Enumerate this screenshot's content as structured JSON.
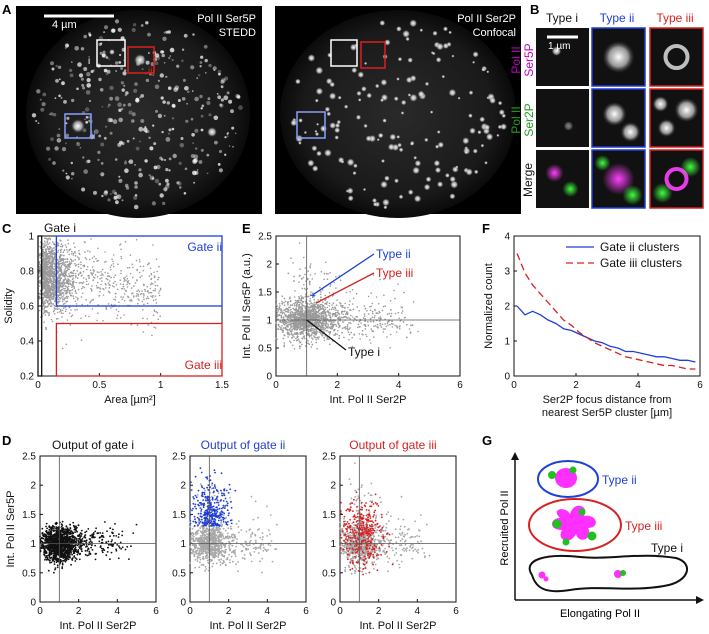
{
  "figure": {
    "panels": {
      "A": {
        "letter": "A",
        "left_image": {
          "line1": "Pol II Ser5P",
          "line2": "STEDD",
          "scalebar": "4 µm",
          "roi_i": "i",
          "roi_ii": "ii",
          "roi_iii": "iii"
        },
        "right_image": {
          "line1": "Pol II Ser2P",
          "line2": "Confocal"
        }
      },
      "B": {
        "letter": "B",
        "col_headers": [
          "Type i",
          "Type ii",
          "Type iii"
        ],
        "col_colors": [
          "#111111",
          "#1f3fd9",
          "#d92020"
        ],
        "row1_label": [
          "Pol II",
          "Ser5P"
        ],
        "row2_label": [
          "Pol II",
          "Ser2P"
        ],
        "row3_label": "Merge",
        "scalebar": "1 µm",
        "row1_color": "#c000c0",
        "row2_color": "#20a020"
      },
      "C": {
        "letter": "C",
        "gate_i": "Gate i",
        "gate_ii": "Gate ii",
        "gate_iii": "Gate iii"
      },
      "D": {
        "letter": "D",
        "titles": [
          "Output of gate i",
          "Output of gate ii",
          "Output of gate iii"
        ],
        "title_colors": [
          "#111111",
          "#1f3fd9",
          "#d92020"
        ]
      },
      "E": {
        "letter": "E",
        "type_i": "Type i",
        "type_ii": "Type ii",
        "type_iii": "Type iii"
      },
      "F": {
        "letter": "F"
      },
      "G": {
        "letter": "G",
        "ylabel": "Recruited Pol II",
        "xlabel": "Elongating Pol II",
        "type_i": "Type i",
        "type_ii": "Type ii",
        "type_iii": "Type iii"
      }
    }
  },
  "colors": {
    "blue": "#1f3fd9",
    "red": "#d92020",
    "gray": "#9a9a9a",
    "black": "#111111",
    "magenta": "#e020e0",
    "green": "#20b020"
  },
  "chart_data": [
    {
      "id": "C",
      "type": "scatter",
      "xlabel": "Area [µm²]",
      "ylabel": "Solidity",
      "xlim": [
        0,
        1.5
      ],
      "ylim": [
        0.2,
        1.0
      ],
      "xticks": [
        "0",
        "0.5",
        "1",
        "1.5"
      ],
      "yticks": [
        "0.2",
        "0.4",
        "0.6",
        "0.8",
        "1"
      ],
      "gates": [
        {
          "name": "Gate i",
          "color": "#111111",
          "x": [
            0,
            0.03
          ],
          "y": [
            0.2,
            1.0
          ]
        },
        {
          "name": "Gate ii",
          "color": "#1f3fd9",
          "x": [
            0.15,
            1.5
          ],
          "y": [
            0.6,
            1.0
          ]
        },
        {
          "name": "Gate iii",
          "color": "#d92020",
          "x": [
            0.15,
            1.5
          ],
          "y": [
            0.2,
            0.5
          ]
        }
      ]
    },
    {
      "id": "E",
      "type": "scatter",
      "xlabel": "Int. Pol II Ser2P",
      "ylabel": "Int. Pol II Ser5P (a.u.)",
      "xlim": [
        0,
        6
      ],
      "ylim": [
        0,
        2.5
      ],
      "xticks": [
        "0",
        "2",
        "4",
        "6"
      ],
      "yticks": [
        "0",
        "0.5",
        "1",
        "1.5",
        "2",
        "2.5"
      ],
      "reference_lines": {
        "x": 1,
        "y": 1
      },
      "markers": [
        {
          "name": "Type ii",
          "x": 1.2,
          "y": 1.45,
          "color": "#1f3fd9"
        },
        {
          "name": "Type iii",
          "x": 1.3,
          "y": 1.3,
          "color": "#d92020"
        },
        {
          "name": "Type i",
          "x": 1.0,
          "y": 1.0,
          "color": "#111111"
        }
      ]
    },
    {
      "id": "F",
      "type": "line",
      "xlabel": "Ser2P focus distance from nearest Ser5P cluster [µm]",
      "ylabel": "Normalized count",
      "xlim": [
        0,
        6
      ],
      "ylim": [
        0,
        4
      ],
      "xticks": [
        "0",
        "2",
        "4",
        "6"
      ],
      "yticks": [
        "0",
        "1",
        "2",
        "3",
        "4"
      ],
      "legend": "top-right",
      "series": [
        {
          "name": "Gate ii clusters",
          "color": "#1f3fd9",
          "dash": "solid",
          "x": [
            0.1,
            0.35,
            0.6,
            0.85,
            1.1,
            1.35,
            1.6,
            1.85,
            2.1,
            2.35,
            2.6,
            2.85,
            3.1,
            3.35,
            3.6,
            3.85,
            4.1,
            4.35,
            4.6,
            4.85,
            5.1,
            5.35,
            5.6,
            5.85
          ],
          "values": [
            2.0,
            1.75,
            1.85,
            1.75,
            1.6,
            1.5,
            1.35,
            1.3,
            1.2,
            1.1,
            1.0,
            0.95,
            0.85,
            0.8,
            0.7,
            0.7,
            0.65,
            0.6,
            0.55,
            0.55,
            0.5,
            0.45,
            0.45,
            0.4
          ]
        },
        {
          "name": "Gate iii clusters",
          "color": "#d92020",
          "dash": "dashed",
          "x": [
            0.1,
            0.35,
            0.6,
            0.85,
            1.1,
            1.35,
            1.6,
            1.85,
            2.1,
            2.35,
            2.6,
            2.85,
            3.1,
            3.35,
            3.6,
            3.85,
            4.1,
            4.35,
            4.6,
            4.85,
            5.1,
            5.35,
            5.6,
            5.85
          ],
          "values": [
            3.5,
            2.95,
            2.6,
            2.35,
            2.1,
            1.85,
            1.6,
            1.45,
            1.25,
            1.1,
            0.95,
            0.85,
            0.75,
            0.65,
            0.55,
            0.5,
            0.45,
            0.4,
            0.35,
            0.3,
            0.3,
            0.25,
            0.2,
            0.2
          ]
        }
      ]
    },
    {
      "id": "D",
      "type": "scatter",
      "xlabel": "Int. Pol II Ser2P",
      "ylabel": "Int. Pol II Ser5P",
      "xlim": [
        0,
        6
      ],
      "ylim": [
        0,
        2.5
      ],
      "xticks": [
        "0",
        "2",
        "4",
        "6"
      ],
      "yticks": [
        "0",
        "0.5",
        "1",
        "1.5",
        "2",
        "2.5"
      ],
      "reference_lines": {
        "x": 1,
        "y": 1
      },
      "subplots": [
        {
          "title": "Output of gate i",
          "highlight_color": "#111111"
        },
        {
          "title": "Output of gate ii",
          "highlight_color": "#1f3fd9"
        },
        {
          "title": "Output of gate iii",
          "highlight_color": "#d92020"
        }
      ]
    }
  ]
}
